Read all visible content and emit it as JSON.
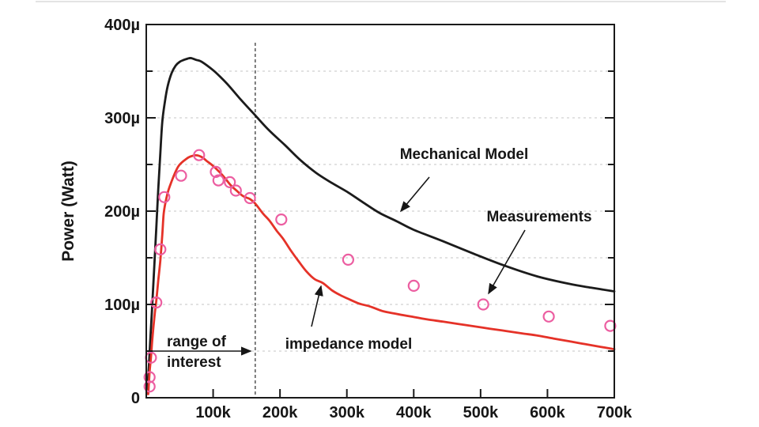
{
  "chart_data": {
    "type": "line+scatter",
    "title": "",
    "xlabel": "",
    "ylabel": "Power (Watt)",
    "xlim": [
      0,
      700
    ],
    "ylim": [
      0,
      400
    ],
    "x_unit": "kHz (ticks shown as k)",
    "y_unit": "microwatt",
    "x_ticks": [
      100,
      200,
      300,
      400,
      500,
      600,
      700
    ],
    "x_tick_labels": [
      "100k",
      "200k",
      "300k",
      "400k",
      "500k",
      "600k",
      "700k"
    ],
    "y_major_ticks": [
      0,
      100,
      200,
      300,
      400
    ],
    "y_tick_labels": [
      "0",
      "100µ",
      "200µ",
      "300µ",
      "400µ"
    ],
    "y_minor_ticks": [
      50,
      150,
      250,
      350
    ],
    "grid_y_values": [
      50,
      100,
      150,
      200,
      250,
      300,
      350
    ],
    "grid_style": "dashed",
    "legend_position": "in-plot annotations with arrows",
    "series": [
      {
        "name": "Mechanical Model",
        "type": "line",
        "color": "#1b1b1b",
        "points": [
          [
            1,
            4
          ],
          [
            4,
            35
          ],
          [
            6,
            62
          ],
          [
            9,
            100
          ],
          [
            12,
            140
          ],
          [
            15,
            182
          ],
          [
            18,
            224
          ],
          [
            21,
            262
          ],
          [
            24,
            296
          ],
          [
            28,
            318
          ],
          [
            32,
            334
          ],
          [
            38,
            348
          ],
          [
            44,
            356
          ],
          [
            50,
            360
          ],
          [
            56,
            362
          ],
          [
            62,
            363.5
          ],
          [
            67,
            364
          ],
          [
            75,
            362
          ],
          [
            83,
            360
          ],
          [
            100,
            351
          ],
          [
            112,
            343
          ],
          [
            124,
            334
          ],
          [
            142,
            319
          ],
          [
            160,
            305
          ],
          [
            183,
            287
          ],
          [
            207,
            271
          ],
          [
            230,
            255
          ],
          [
            254,
            241
          ],
          [
            278,
            230
          ],
          [
            302,
            220
          ],
          [
            325,
            209
          ],
          [
            349,
            198
          ],
          [
            375,
            189
          ],
          [
            400,
            180
          ],
          [
            443,
            168
          ],
          [
            491,
            154
          ],
          [
            538,
            141
          ],
          [
            585,
            130
          ],
          [
            633,
            122
          ],
          [
            665,
            118
          ],
          [
            700,
            114
          ]
        ]
      },
      {
        "name": "impedance model",
        "type": "line",
        "color": "#e53228",
        "points": [
          [
            3,
            4
          ],
          [
            5,
            28
          ],
          [
            7,
            43
          ],
          [
            9,
            62
          ],
          [
            11,
            78
          ],
          [
            13,
            92
          ],
          [
            15,
            104
          ],
          [
            18,
            126
          ],
          [
            21,
            147
          ],
          [
            24,
            175
          ],
          [
            26,
            197
          ],
          [
            29,
            210
          ],
          [
            33,
            222
          ],
          [
            38,
            232
          ],
          [
            43,
            241
          ],
          [
            48,
            248
          ],
          [
            53,
            252
          ],
          [
            58,
            255
          ],
          [
            63,
            257.5
          ],
          [
            68,
            259
          ],
          [
            73,
            259.8
          ],
          [
            78,
            259.5
          ],
          [
            84,
            257.5
          ],
          [
            90,
            254
          ],
          [
            99,
            249
          ],
          [
            108,
            243
          ],
          [
            117,
            236
          ],
          [
            126,
            228
          ],
          [
            135,
            222
          ],
          [
            145,
            216
          ],
          [
            155,
            213
          ],
          [
            163,
            208
          ],
          [
            175,
            197
          ],
          [
            184,
            190
          ],
          [
            195,
            179
          ],
          [
            205,
            170
          ],
          [
            216,
            158
          ],
          [
            227,
            147
          ],
          [
            240,
            135
          ],
          [
            252,
            127
          ],
          [
            264,
            123
          ],
          [
            278,
            115
          ],
          [
            290,
            110
          ],
          [
            302,
            106
          ],
          [
            318,
            101
          ],
          [
            334,
            98
          ],
          [
            353,
            93
          ],
          [
            373,
            90
          ],
          [
            396,
            87
          ],
          [
            420,
            84
          ],
          [
            444,
            81.5
          ],
          [
            467,
            79
          ],
          [
            491,
            76.5
          ],
          [
            514,
            74
          ],
          [
            538,
            71.5
          ],
          [
            562,
            69
          ],
          [
            586,
            66.5
          ],
          [
            609,
            63.5
          ],
          [
            633,
            60.5
          ],
          [
            656,
            57.5
          ],
          [
            680,
            54.5
          ],
          [
            700,
            52
          ]
        ]
      },
      {
        "name": "Measurements",
        "type": "scatter",
        "color": "#ec5ea1",
        "marker": "open-circle",
        "points": [
          [
            5,
            12
          ],
          [
            5,
            22
          ],
          [
            7,
            43
          ],
          [
            15,
            102
          ],
          [
            21,
            159
          ],
          [
            27,
            215
          ],
          [
            52,
            238
          ],
          [
            79,
            260
          ],
          [
            104,
            242
          ],
          [
            108,
            233
          ],
          [
            125,
            231
          ],
          [
            134,
            222
          ],
          [
            155,
            214
          ],
          [
            202,
            191
          ],
          [
            302,
            148
          ],
          [
            400,
            120
          ],
          [
            504,
            100
          ],
          [
            602,
            87
          ],
          [
            694,
            77
          ]
        ]
      }
    ],
    "annotations": {
      "mechanical_label": "Mechanical Model",
      "measurements_label": "Measurements",
      "impedance_label": "impedance model",
      "range_label_line1": "range of",
      "range_label_line2": "interest",
      "range_boundary_x": 163
    }
  }
}
